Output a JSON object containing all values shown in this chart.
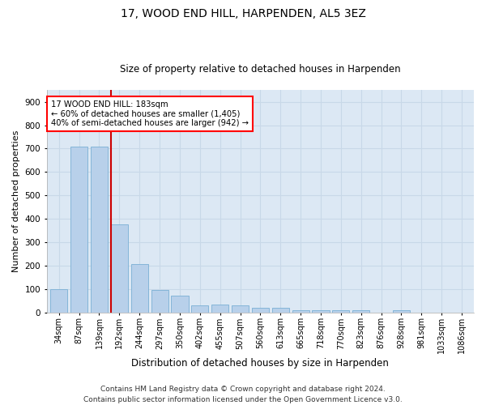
{
  "title": "17, WOOD END HILL, HARPENDEN, AL5 3EZ",
  "subtitle": "Size of property relative to detached houses in Harpenden",
  "xlabel": "Distribution of detached houses by size in Harpenden",
  "ylabel": "Number of detached properties",
  "footnote1": "Contains HM Land Registry data © Crown copyright and database right 2024.",
  "footnote2": "Contains public sector information licensed under the Open Government Licence v3.0.",
  "bar_labels": [
    "34sqm",
    "87sqm",
    "139sqm",
    "192sqm",
    "244sqm",
    "297sqm",
    "350sqm",
    "402sqm",
    "455sqm",
    "507sqm",
    "560sqm",
    "613sqm",
    "665sqm",
    "718sqm",
    "770sqm",
    "823sqm",
    "876sqm",
    "928sqm",
    "981sqm",
    "1033sqm",
    "1086sqm"
  ],
  "bar_values": [
    100,
    707,
    707,
    375,
    205,
    95,
    72,
    30,
    32,
    30,
    20,
    20,
    10,
    8,
    8,
    8,
    0,
    8,
    0,
    0,
    0
  ],
  "bar_color": "#b8d0ea",
  "bar_edge_color": "#7aafd4",
  "vline_index": 3,
  "vline_color": "#cc0000",
  "annotation_text": "17 WOOD END HILL: 183sqm\n← 60% of detached houses are smaller (1,405)\n40% of semi-detached houses are larger (942) →",
  "ylim": [
    0,
    950
  ],
  "yticks": [
    0,
    100,
    200,
    300,
    400,
    500,
    600,
    700,
    800,
    900
  ],
  "grid_color": "#c8d8e8",
  "bg_color": "#dce8f4",
  "fig_bg": "#ffffff",
  "title_fontsize": 10,
  "subtitle_fontsize": 8.5,
  "ylabel_fontsize": 8,
  "xlabel_fontsize": 8.5,
  "tick_fontsize": 7,
  "footnote_fontsize": 6.5
}
